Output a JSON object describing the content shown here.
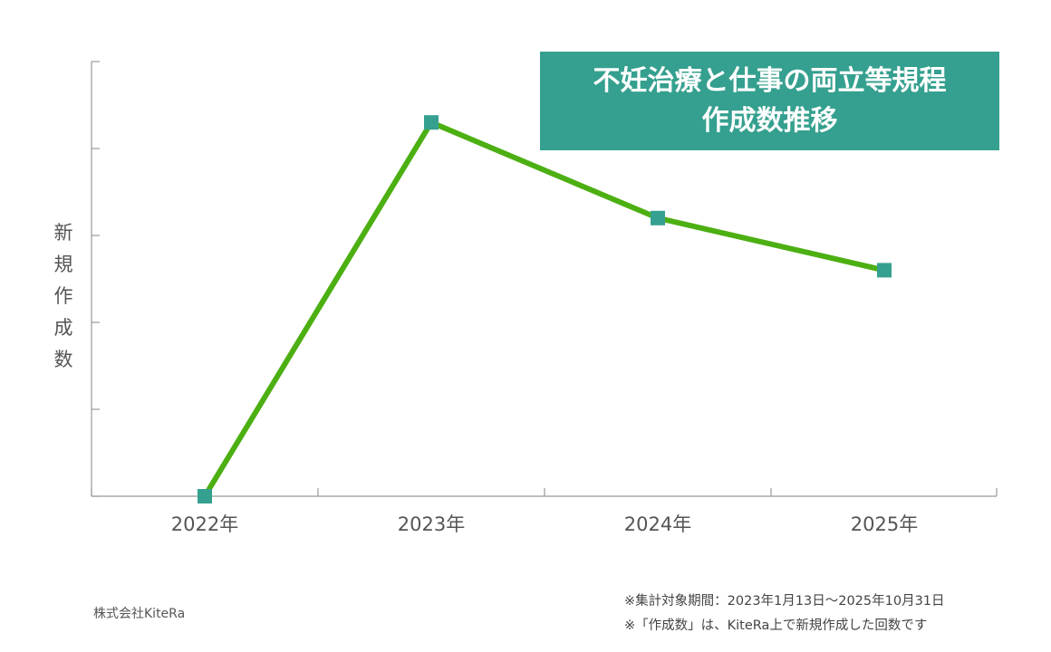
{
  "chart_data": {
    "type": "line",
    "title_lines": [
      "不妊治療と仕事の両立等規程",
      "作成数推移"
    ],
    "ylabel_chars": [
      "新",
      "規",
      "作",
      "成",
      "数"
    ],
    "categories": [
      "2022年",
      "2023年",
      "2024年",
      "2025年"
    ],
    "values": [
      0,
      4.3,
      3.2,
      2.6
    ],
    "ylim": [
      0,
      5
    ],
    "yticks": [
      0,
      1,
      2,
      3,
      4,
      5
    ],
    "grid": false,
    "colors": {
      "line": "#4caf12",
      "marker": "#35a08f",
      "axis": "#999999",
      "title_bg": "#35a08f"
    }
  },
  "footer": {
    "company": "株式会社KiteRa",
    "notes": [
      "※集計対象期間：2023年1月13日～2025年10月31日",
      "※「作成数」は、KiteRa上で新規作成した回数です"
    ]
  }
}
